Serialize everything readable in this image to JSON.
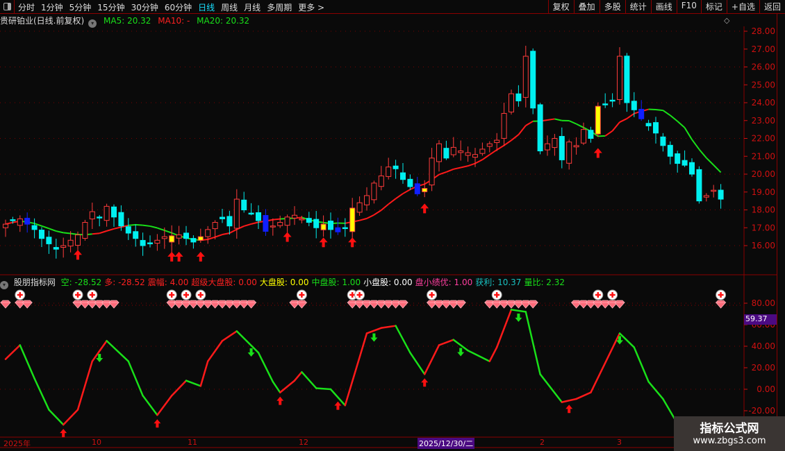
{
  "toolbar": {
    "periods": [
      "分时",
      "1分钟",
      "5分钟",
      "15分钟",
      "30分钟",
      "60分钟",
      "日线",
      "周线",
      "月线",
      "多周期",
      "更多 >"
    ],
    "active": "日线",
    "right_buttons": [
      "复权",
      "叠加",
      "多股",
      "统计",
      "画线",
      "F10",
      "标记",
      "+自选",
      "返回"
    ]
  },
  "header": {
    "stock": "贵研铂业(日线.前复权)",
    "ma5": "MA5: 20.32",
    "ma10": "MA10: -",
    "ma20": "MA20: 20.32"
  },
  "indicator_header": {
    "name": "股朋指标网",
    "items": [
      {
        "label": "空: -28.52",
        "color": "#19e019"
      },
      {
        "label": "多: -28.52",
        "color": "#ff2020"
      },
      {
        "label": "震幅: 4.00",
        "color": "#ff2020"
      },
      {
        "label": "超级大盘股: 0.00",
        "color": "#ff2020"
      },
      {
        "label": "大盘股: 0.00",
        "color": "#ffff00"
      },
      {
        "label": "中盘股: 1.00",
        "color": "#19e019"
      },
      {
        "label": "小盘股: 0.00",
        "color": "#ffffff"
      },
      {
        "label": "盘小绩优: 1.00",
        "color": "#ff3fa0"
      },
      {
        "label": "获利: 10.37",
        "color": "#19c0c0"
      },
      {
        "label": "量比: 2.32",
        "color": "#19e019"
      }
    ]
  },
  "price_axis": [
    "28.00",
    "27.00",
    "26.00",
    "25.00",
    "24.00",
    "23.00",
    "22.00",
    "21.00",
    "20.00",
    "19.00",
    "18.00",
    "17.00",
    "16.00"
  ],
  "indicator_axis": [
    "80.00",
    "60.00",
    "40.00",
    "20.00",
    "0.00",
    "-20.00"
  ],
  "indicator_cursor": "59.37",
  "time_axis": {
    "labels": [
      "2025年",
      "10",
      "11",
      "12",
      "2",
      "3"
    ],
    "selected": "2025/12/30/二"
  },
  "watermark": {
    "title": "指标公式网",
    "url": "www.zbgs3.com"
  },
  "colors": {
    "up": "#ff3b3b",
    "down": "#00f0f0",
    "ma_up": "#ff1a1a",
    "ma_flat": "#19e019",
    "axis": "#d01010",
    "border": "#8b0000"
  },
  "chart_data": {
    "type": "candlestick",
    "closes": [
      17.2,
      17.4,
      17.5,
      17.2,
      16.9,
      16.4,
      16.1,
      15.8,
      16.0,
      16.3,
      16.6,
      17.3,
      17.9,
      17.6,
      18.2,
      17.6,
      17.1,
      16.7,
      16.4,
      16.0,
      16.1,
      16.3,
      16.5,
      16.2,
      16.6,
      16.4,
      16.2,
      16.3,
      16.9,
      17.3,
      17.5,
      17.1,
      18.6,
      18.0,
      17.8,
      17.4,
      16.8,
      17.1,
      17.3,
      17.6,
      17.7,
      17.5,
      17.3,
      17.0,
      17.2,
      16.9,
      17.0,
      17.0,
      18.1,
      18.4,
      18.8,
      19.5,
      19.9,
      20.4,
      20.3,
      19.7,
      19.3,
      18.9,
      19.2,
      20.9,
      21.7,
      20.9,
      21.5,
      21.3,
      21.2,
      21.1,
      21.4,
      21.7,
      21.9,
      23.4,
      24.5,
      24.1,
      26.6,
      23.7,
      21.3,
      21.7,
      22.0,
      20.8,
      21.8,
      21.6,
      22.5,
      22.0,
      23.8,
      23.9,
      24.1,
      26.6,
      24.0,
      23.6,
      23.1,
      22.7,
      22.3,
      21.6,
      21.0,
      20.6,
      20.5,
      20.0,
      18.5,
      18.8,
      19.1,
      18.6
    ],
    "yellow_bars": [
      23,
      27,
      44,
      48,
      58,
      82
    ],
    "blue_bars": [
      3,
      36,
      46,
      57,
      88
    ],
    "buy_arrows": [
      10,
      23,
      24,
      27,
      39,
      44,
      48,
      58,
      82
    ],
    "indicator": [
      [
        0,
        28
      ],
      [
        2,
        41
      ],
      [
        4,
        10
      ],
      [
        6,
        -19
      ],
      [
        8,
        -33
      ],
      [
        10,
        -19
      ],
      [
        12,
        26
      ],
      [
        14,
        45
      ],
      [
        17,
        26
      ],
      [
        19,
        -6
      ],
      [
        21,
        -24
      ],
      [
        23,
        -6
      ],
      [
        25,
        8
      ],
      [
        27,
        3
      ],
      [
        28,
        26
      ],
      [
        30,
        45
      ],
      [
        32,
        54
      ],
      [
        35,
        34
      ],
      [
        37,
        7
      ],
      [
        38,
        -3
      ],
      [
        40,
        8
      ],
      [
        41,
        16
      ],
      [
        43,
        1
      ],
      [
        45,
        0
      ],
      [
        47,
        -15
      ],
      [
        50,
        52
      ],
      [
        52,
        57
      ],
      [
        54,
        59
      ],
      [
        56,
        34
      ],
      [
        58,
        14
      ],
      [
        60,
        41
      ],
      [
        62,
        46
      ],
      [
        64,
        36
      ],
      [
        67,
        26
      ],
      [
        68,
        39
      ],
      [
        70,
        74
      ],
      [
        72,
        72
      ],
      [
        74,
        14
      ],
      [
        77,
        -12
      ],
      [
        79,
        -9
      ],
      [
        81,
        -3
      ],
      [
        85,
        52
      ],
      [
        87,
        39
      ],
      [
        89,
        7
      ],
      [
        91,
        -9
      ],
      [
        93,
        -32
      ]
    ],
    "indicator_up_arrows": [
      8,
      21,
      38,
      46,
      58,
      78
    ],
    "indicator_down_arrows": [
      13,
      34,
      51,
      63,
      71,
      85
    ],
    "diamond_ranges": [
      [
        0,
        0
      ],
      [
        2,
        3
      ],
      [
        10,
        15
      ],
      [
        23,
        26
      ],
      [
        27,
        34
      ],
      [
        40,
        41
      ],
      [
        48,
        55
      ],
      [
        59,
        63
      ],
      [
        67,
        73
      ],
      [
        79,
        85
      ],
      [
        99,
        99
      ]
    ],
    "circle_marks": [
      2,
      10,
      12,
      23,
      25,
      27,
      41,
      48,
      49,
      59,
      68,
      82,
      84,
      99
    ],
    "price_range": [
      16,
      28
    ],
    "indicator_range": [
      -20,
      80
    ]
  }
}
